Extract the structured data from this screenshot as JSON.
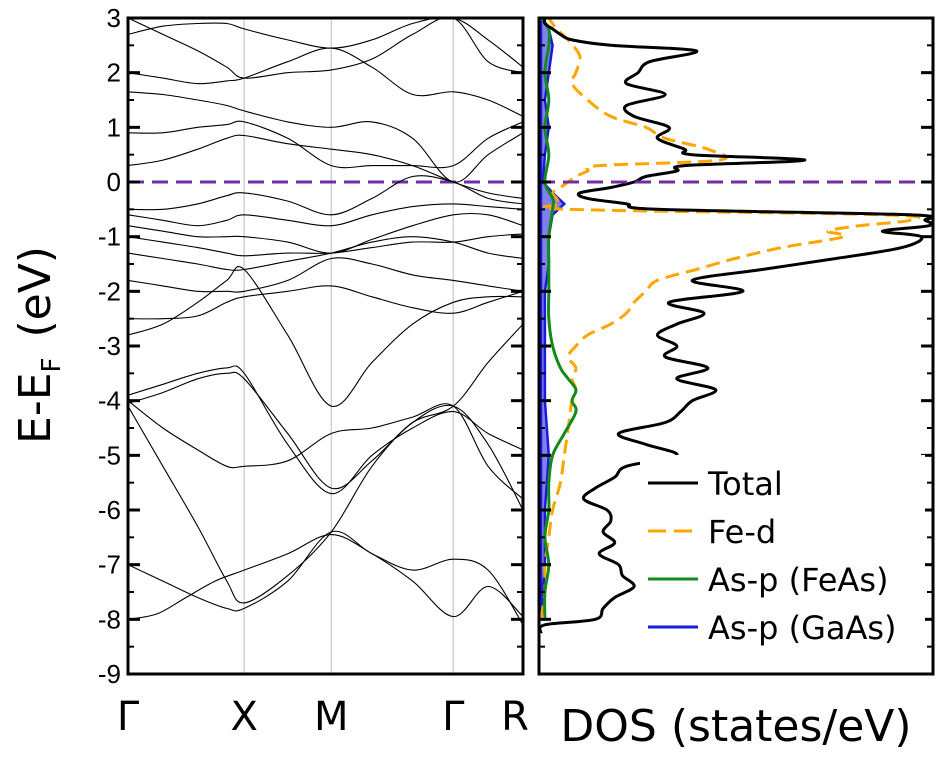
{
  "chart_data": [
    {
      "type": "line",
      "panel": "band-structure",
      "ylabel_main": "E-E",
      "ylabel_sub": "F",
      "ylabel_unit": "(eV)",
      "ylim": [
        -9,
        3
      ],
      "yticks": [
        "3",
        "2",
        "1",
        "0",
        "-1",
        "-2",
        "-3",
        "-4",
        "-5",
        "-6",
        "-7",
        "-8",
        "-9"
      ],
      "kpoints": [
        "Γ",
        "X",
        "M",
        "Γ",
        "R"
      ],
      "kpoint_positions": [
        0,
        1,
        1.75,
        2.8,
        3.4
      ],
      "fermi_level": 0,
      "fermi_color": "#6f2da8",
      "band_color": "#000000",
      "vertical_line_color": "#d0d0d0",
      "bands": [
        {
          "x": [
            0,
            0.25,
            0.5,
            0.75,
            1,
            1.375,
            1.75,
            2.1,
            2.45,
            2.8,
            3.1,
            3.4
          ],
          "y": [
            -8.0,
            -7.9,
            -7.6,
            -7.3,
            -7.1,
            -6.8,
            -6.45,
            -6.8,
            -7.3,
            -7.95,
            -7.4,
            -7.95
          ]
        },
        {
          "x": [
            0,
            0.3,
            0.6,
            0.85,
            1,
            1.375,
            1.75,
            2.1,
            2.45,
            2.8,
            3.1,
            3.4
          ],
          "y": [
            -7.0,
            -7.3,
            -7.6,
            -7.8,
            -7.8,
            -7.3,
            -6.4,
            -6.8,
            -7.1,
            -6.9,
            -7.1,
            -8.1
          ]
        },
        {
          "x": [
            0,
            0.3,
            0.6,
            0.85,
            1,
            1.375,
            1.75,
            2.1,
            2.45,
            2.8,
            3.1,
            3.4
          ],
          "y": [
            -4.1,
            -5.2,
            -6.3,
            -7.3,
            -7.7,
            -7.2,
            -6.4,
            -5.2,
            -4.4,
            -4.1,
            -4.8,
            -6.0
          ]
        },
        {
          "x": [
            0,
            0.3,
            0.6,
            0.85,
            1,
            1.375,
            1.75,
            2.1,
            2.45,
            2.8,
            3.1,
            3.4
          ],
          "y": [
            -4.0,
            -4.5,
            -4.9,
            -5.2,
            -5.2,
            -5.1,
            -4.6,
            -4.5,
            -4.3,
            -4.1,
            -5.2,
            -5.8
          ]
        },
        {
          "x": [
            0,
            0.3,
            0.6,
            0.85,
            1,
            1.375,
            1.75,
            2.1,
            2.45,
            2.8,
            3.1,
            3.4
          ],
          "y": [
            -3.9,
            -3.7,
            -3.5,
            -3.4,
            -3.5,
            -4.8,
            -5.7,
            -5.0,
            -4.5,
            -4.2,
            -4.6,
            -4.9
          ]
        },
        {
          "x": [
            0,
            0.3,
            0.6,
            0.85,
            1,
            1.375,
            1.75,
            2.1,
            2.45,
            2.8,
            3.1,
            3.4
          ],
          "y": [
            -4.05,
            -3.85,
            -3.6,
            -3.5,
            -3.6,
            -4.6,
            -5.6,
            -5.1,
            -4.4,
            -4.1,
            -3.3,
            -2.6
          ]
        },
        {
          "x": [
            0,
            0.3,
            0.6,
            0.85,
            1,
            1.375,
            1.75,
            2.1,
            2.45,
            2.8,
            3.1,
            3.4
          ],
          "y": [
            -2.5,
            -2.5,
            -2.45,
            -2.2,
            -2.1,
            -2.0,
            -1.9,
            -2.1,
            -2.3,
            -2.4,
            -2.2,
            -2.0
          ]
        },
        {
          "x": [
            0,
            0.3,
            0.6,
            0.85,
            1,
            1.375,
            1.75,
            2.1,
            2.45,
            2.8,
            3.1,
            3.4
          ],
          "y": [
            -2.8,
            -2.6,
            -2.2,
            -1.8,
            -1.6,
            -2.8,
            -4.1,
            -3.3,
            -2.6,
            -2.2,
            -2.1,
            -2.1
          ]
        },
        {
          "x": [
            0,
            0.3,
            0.6,
            0.85,
            1,
            1.375,
            1.75,
            2.1,
            2.45,
            2.8,
            3.1,
            3.4
          ],
          "y": [
            -1.8,
            -1.9,
            -2.0,
            -2.0,
            -2.0,
            -1.8,
            -1.4,
            -1.5,
            -1.7,
            -1.8,
            -1.9,
            -2.0
          ]
        },
        {
          "x": [
            0,
            0.3,
            0.6,
            0.85,
            1,
            1.375,
            1.75,
            2.1,
            2.45,
            2.8,
            3.1,
            3.4
          ],
          "y": [
            -1.3,
            -1.4,
            -1.5,
            -1.6,
            -1.6,
            -1.45,
            -1.3,
            -1.1,
            -1.0,
            -1.1,
            -1.3,
            -1.4
          ]
        },
        {
          "x": [
            0,
            0.3,
            0.6,
            0.85,
            1,
            1.375,
            1.75,
            2.1,
            2.45,
            2.8,
            3.1,
            3.4
          ],
          "y": [
            -1.0,
            -1.1,
            -1.2,
            -1.3,
            -1.35,
            -1.3,
            -1.3,
            -1.2,
            -1.1,
            -1.1,
            -1.0,
            -0.95
          ]
        },
        {
          "x": [
            0,
            0.3,
            0.6,
            0.85,
            1,
            1.375,
            1.75,
            2.1,
            2.45,
            2.8,
            3.1,
            3.4
          ],
          "y": [
            -0.8,
            -0.9,
            -1.0,
            -1.0,
            -1.0,
            -1.1,
            -1.3,
            -1.05,
            -0.8,
            -0.6,
            -0.6,
            -0.8
          ]
        },
        {
          "x": [
            0,
            0.3,
            0.6,
            0.85,
            1,
            1.375,
            1.75,
            2.1,
            2.45,
            2.8,
            3.1,
            3.4
          ],
          "y": [
            -0.6,
            -0.7,
            -0.8,
            -0.7,
            -0.6,
            -0.7,
            -0.8,
            -0.6,
            -0.45,
            -0.4,
            -0.45,
            -0.5
          ]
        },
        {
          "x": [
            0,
            0.3,
            0.6,
            0.85,
            1,
            1.375,
            1.75,
            2.1,
            2.45,
            2.8,
            3.1,
            3.4
          ],
          "y": [
            -0.5,
            -0.5,
            -0.4,
            -0.25,
            -0.2,
            -0.35,
            -0.6,
            -0.3,
            0.1,
            0.0,
            -0.3,
            -0.4
          ]
        },
        {
          "x": [
            0,
            0.3,
            0.6,
            0.85,
            1,
            1.375,
            1.75,
            2.1,
            2.45,
            2.8,
            3.1,
            3.4
          ],
          "y": [
            0.3,
            0.4,
            0.6,
            0.8,
            0.85,
            0.7,
            0.6,
            0.5,
            0.3,
            0.0,
            -0.2,
            -0.3
          ]
        },
        {
          "x": [
            0,
            0.3,
            0.6,
            0.85,
            1,
            1.375,
            1.75,
            2.1,
            2.45,
            2.8,
            3.1,
            3.4
          ],
          "y": [
            0.9,
            0.9,
            1.0,
            1.05,
            1.1,
            0.8,
            0.3,
            0.3,
            0.3,
            0.3,
            0.8,
            1.1
          ]
        },
        {
          "x": [
            0,
            0.3,
            0.6,
            0.85,
            1,
            1.375,
            1.75,
            2.1,
            2.45,
            2.8,
            3.1,
            3.4
          ],
          "y": [
            1.65,
            1.6,
            1.5,
            1.4,
            1.3,
            1.1,
            1.0,
            1.1,
            0.8,
            0.0,
            0.5,
            0.9
          ]
        },
        {
          "x": [
            0,
            0.3,
            0.6,
            0.85,
            1,
            1.375,
            1.75,
            2.1,
            2.45,
            2.8,
            3.1,
            3.4
          ],
          "y": [
            2.0,
            1.9,
            1.8,
            1.85,
            1.9,
            2.2,
            2.45,
            2.1,
            1.6,
            1.65,
            1.5,
            1.2
          ]
        },
        {
          "x": [
            0,
            0.3,
            0.6,
            0.85,
            1,
            1.375,
            1.75,
            2.1,
            2.45,
            2.8,
            3.1,
            3.4
          ],
          "y": [
            3.0,
            2.7,
            2.4,
            2.1,
            1.9,
            2.0,
            2.05,
            2.25,
            2.7,
            3.0,
            2.2,
            2.0
          ]
        },
        {
          "x": [
            0,
            0.3,
            0.6,
            0.85,
            1,
            1.375,
            1.75,
            2.1,
            2.45,
            2.8,
            3.1,
            3.4
          ],
          "y": [
            2.7,
            2.85,
            2.9,
            2.9,
            2.8,
            2.6,
            2.45,
            2.6,
            2.9,
            3.0,
            2.6,
            2.1
          ]
        }
      ]
    },
    {
      "type": "area",
      "panel": "density-of-states",
      "xlabel": "DOS (states/eV)",
      "ylim": [
        -9,
        3
      ],
      "fermi_level": 0,
      "fermi_color": "#6f2da8",
      "legend_position": "bottom-right",
      "series": [
        {
          "name": "Total",
          "color": "#000000",
          "style": "solid",
          "E": [
            -8.25,
            -8.1,
            -8.0,
            -7.8,
            -7.6,
            -7.4,
            -7.2,
            -7.0,
            -6.8,
            -6.6,
            -6.4,
            -6.2,
            -6.0,
            -5.8,
            -5.6,
            -5.4,
            -5.2,
            -5.0,
            -4.8,
            -4.6,
            -4.4,
            -4.2,
            -4.0,
            -3.8,
            -3.6,
            -3.4,
            -3.2,
            -3.0,
            -2.8,
            -2.6,
            -2.4,
            -2.2,
            -2.0,
            -1.8,
            -1.6,
            -1.4,
            -1.2,
            -1.0,
            -0.9,
            -0.8,
            -0.7,
            -0.6,
            -0.5,
            -0.4,
            -0.3,
            -0.2,
            -0.1,
            0.0,
            0.1,
            0.2,
            0.3,
            0.4,
            0.5,
            0.6,
            0.8,
            1.0,
            1.2,
            1.4,
            1.6,
            1.8,
            2.0,
            2.2,
            2.4,
            2.5,
            2.6,
            2.7,
            2.8,
            2.9,
            3.0
          ],
          "values": [
            0.0,
            0.01,
            0.14,
            0.16,
            0.19,
            0.24,
            0.21,
            0.2,
            0.15,
            0.19,
            0.16,
            0.18,
            0.17,
            0.11,
            0.14,
            0.19,
            0.22,
            0.35,
            0.27,
            0.2,
            0.32,
            0.36,
            0.39,
            0.45,
            0.35,
            0.43,
            0.32,
            0.35,
            0.3,
            0.35,
            0.42,
            0.33,
            0.52,
            0.39,
            0.57,
            0.76,
            0.93,
            0.98,
            0.88,
            1.0,
            0.99,
            0.95,
            0.3,
            0.22,
            0.12,
            0.1,
            0.18,
            0.24,
            0.27,
            0.35,
            0.37,
            0.68,
            0.39,
            0.37,
            0.3,
            0.33,
            0.24,
            0.22,
            0.32,
            0.22,
            0.25,
            0.28,
            0.4,
            0.18,
            0.08,
            0.05,
            0.03,
            0.01,
            0.01
          ]
        },
        {
          "name": "Fe-d",
          "color": "#ffa500",
          "style": "dashed",
          "E": [
            -8.0,
            -7.5,
            -7.0,
            -6.5,
            -6.0,
            -5.5,
            -5.0,
            -4.5,
            -4.0,
            -3.8,
            -3.6,
            -3.4,
            -3.2,
            -3.0,
            -2.8,
            -2.6,
            -2.4,
            -2.2,
            -2.0,
            -1.8,
            -1.6,
            -1.4,
            -1.2,
            -1.0,
            -0.9,
            -0.8,
            -0.7,
            -0.6,
            -0.5,
            -0.4,
            -0.3,
            -0.2,
            -0.1,
            0.0,
            0.1,
            0.2,
            0.3,
            0.4,
            0.6,
            0.8,
            1.0,
            1.2,
            1.5,
            1.8,
            2.0,
            2.3,
            2.6,
            2.8,
            3.0
          ],
          "values": [
            0.0,
            0.01,
            0.01,
            0.02,
            0.03,
            0.05,
            0.06,
            0.07,
            0.08,
            0.09,
            0.08,
            0.09,
            0.07,
            0.09,
            0.12,
            0.18,
            0.22,
            0.24,
            0.27,
            0.3,
            0.4,
            0.5,
            0.62,
            0.78,
            0.74,
            0.82,
            0.95,
            0.88,
            0.07,
            0.05,
            0.04,
            0.03,
            0.05,
            0.07,
            0.09,
            0.12,
            0.15,
            0.46,
            0.43,
            0.32,
            0.27,
            0.18,
            0.12,
            0.08,
            0.09,
            0.1,
            0.07,
            0.04,
            0.02
          ]
        },
        {
          "name": "As-p (FeAs)",
          "color": "#138a1b",
          "style": "solid",
          "E": [
            -8.0,
            -7.5,
            -7.0,
            -6.5,
            -6.0,
            -5.5,
            -5.0,
            -4.6,
            -4.2,
            -4.0,
            -3.8,
            -3.6,
            -3.4,
            -3.0,
            -2.5,
            -2.0,
            -1.5,
            -1.0,
            -0.5,
            -0.3,
            0.0,
            0.5,
            1.0,
            1.5,
            2.0,
            2.5,
            2.8,
            3.0
          ],
          "values": [
            0.01,
            0.01,
            0.02,
            0.01,
            0.02,
            0.02,
            0.03,
            0.06,
            0.09,
            0.08,
            0.09,
            0.07,
            0.05,
            0.03,
            0.02,
            0.02,
            0.02,
            0.02,
            0.03,
            0.03,
            0.01,
            0.02,
            0.01,
            0.02,
            0.01,
            0.02,
            0.02,
            0.0
          ]
        },
        {
          "name": "As-p (GaAs)",
          "color": "#1a1adc",
          "style": "filled",
          "E": [
            -8.0,
            -7.0,
            -6.0,
            -5.0,
            -4.0,
            -3.0,
            -2.5,
            -2.0,
            -1.5,
            -1.0,
            -0.6,
            -0.4,
            -0.2,
            0.0,
            0.5,
            1.0,
            1.5,
            2.0,
            2.5,
            2.8,
            3.0
          ],
          "values": [
            0.0,
            0.01,
            0.01,
            0.02,
            0.01,
            0.01,
            0.01,
            0.01,
            0.02,
            0.02,
            0.03,
            0.06,
            0.03,
            0.005,
            0.01,
            0.02,
            0.01,
            0.02,
            0.03,
            0.02,
            0.0
          ]
        }
      ]
    }
  ]
}
